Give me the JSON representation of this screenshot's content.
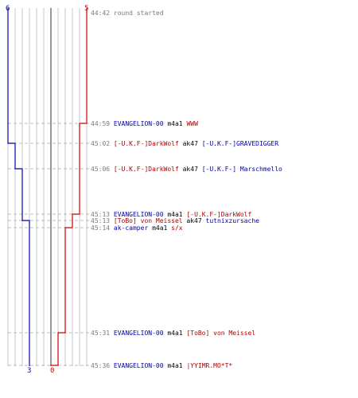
{
  "scoreboard": {
    "blue_count_top": "6",
    "red_count_top": "5",
    "blue_count_bottom": "3",
    "red_count_bottom": "0"
  },
  "colors": {
    "blue_team": "#0000aa",
    "red_team": "#cc0000",
    "timeline_grid": "#b8b8b8",
    "center_axis": "#555555",
    "time_text": "#7a7a7a"
  },
  "events": [
    {
      "time": "44:42",
      "parts": [
        {
          "text": "round started",
          "color": "grey"
        }
      ]
    },
    {
      "time": "44:59",
      "parts": [
        {
          "text": "EVANGELION-00",
          "color": "blue"
        },
        {
          "text": " m4a1 ",
          "color": "black"
        },
        {
          "text": "WWW",
          "color": "red"
        }
      ]
    },
    {
      "time": "45:02",
      "parts": [
        {
          "text": "[-U.K.F-]DarkWolf",
          "color": "red"
        },
        {
          "text": " ak47 ",
          "color": "black"
        },
        {
          "text": "[-U.K.F-]GRAVEDIGGER",
          "color": "blue"
        }
      ]
    },
    {
      "time": "45:06",
      "parts": [
        {
          "text": "[-U.K.F-]DarkWolf",
          "color": "red"
        },
        {
          "text": " ak47 ",
          "color": "black"
        },
        {
          "text": "[-U.K.F-] Marschmello",
          "color": "blue"
        }
      ]
    },
    {
      "time": "45:13",
      "parts": [
        {
          "text": "EVANGELION-00",
          "color": "blue"
        },
        {
          "text": " m4a1 ",
          "color": "black"
        },
        {
          "text": "[-U.K.F-]DarkWolf",
          "color": "red"
        }
      ]
    },
    {
      "time": "45:13",
      "parts": [
        {
          "text": "[ToBo] von Meissel",
          "color": "red"
        },
        {
          "text": " ak47 ",
          "color": "black"
        },
        {
          "text": "tutnixzursache",
          "color": "blue"
        }
      ]
    },
    {
      "time": "45:14",
      "parts": [
        {
          "text": "ak-camper",
          "color": "blue"
        },
        {
          "text": " m4a1 ",
          "color": "black"
        },
        {
          "text": "s/x",
          "color": "red"
        }
      ]
    },
    {
      "time": "45:31",
      "parts": [
        {
          "text": "EVANGELION-00",
          "color": "blue"
        },
        {
          "text": " m4a1 ",
          "color": "black"
        },
        {
          "text": "[ToBo] von Meissel",
          "color": "red"
        }
      ]
    },
    {
      "time": "45:36",
      "parts": [
        {
          "text": "EVANGELION-00",
          "color": "blue"
        },
        {
          "text": " m4a1 ",
          "color": "black"
        },
        {
          "text": "|YYIMR.MO*T*",
          "color": "red"
        }
      ]
    }
  ],
  "chart_data": {
    "type": "line",
    "x_label": "",
    "y_label": "",
    "series": [
      {
        "team": "blue",
        "alive_after_event": [
          6,
          6,
          5,
          4,
          4,
          3,
          3,
          3,
          3
        ],
        "final": 3
      },
      {
        "team": "red",
        "alive_after_event": [
          5,
          4,
          4,
          4,
          3,
          3,
          2,
          1,
          0
        ],
        "final": 0
      }
    ]
  }
}
